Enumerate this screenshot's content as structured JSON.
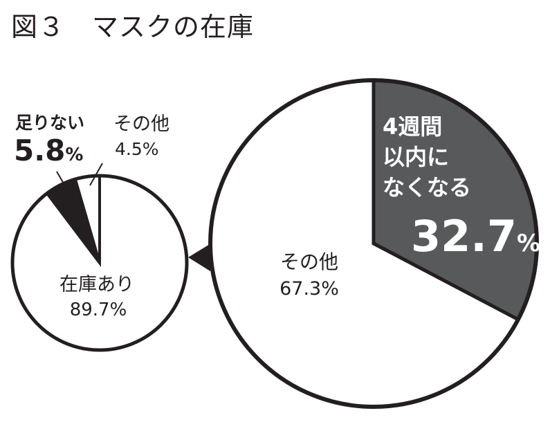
{
  "title": "図３　マスクの在庫",
  "chart_data": [
    {
      "type": "pie",
      "slices": [
        {
          "label": "在庫あり",
          "value": 89.7,
          "value_text": "89.7%",
          "color": "#ffffff"
        },
        {
          "label": "足りない",
          "value": 5.8,
          "value_text": "5.8%",
          "color": "#231f20"
        },
        {
          "label": "その他",
          "value": 4.5,
          "value_text": "4.5%",
          "color": "#ffffff"
        }
      ]
    },
    {
      "type": "pie",
      "breakdown_of": "在庫あり",
      "slices": [
        {
          "label_lines": [
            "4週間",
            "以内に",
            "なくなる"
          ],
          "value": 32.7,
          "value_number": "32.7",
          "value_unit": "%",
          "color": "#58595b"
        },
        {
          "label": "その他",
          "value": 67.3,
          "value_text": "67.3%",
          "color": "#ffffff"
        }
      ]
    }
  ],
  "colors": {
    "stroke": "#231f20",
    "dark_slice": "#231f20",
    "gray_slice": "#58595b",
    "background": "#ffffff"
  }
}
